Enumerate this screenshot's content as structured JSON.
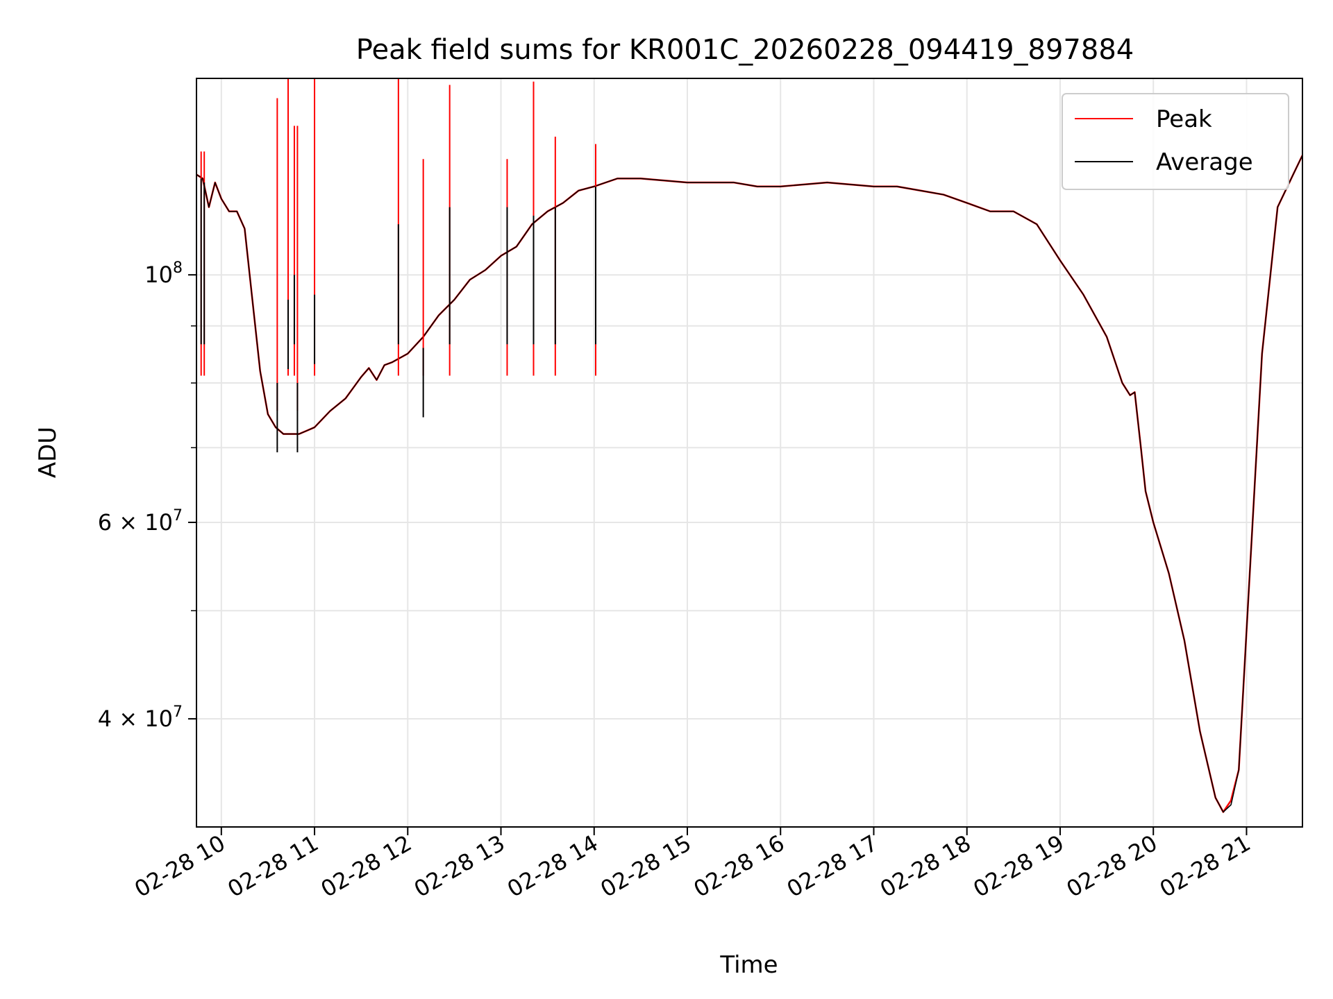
{
  "chart_data": {
    "type": "line",
    "title": "Peak field sums for KR001C_20260228_094419_897884",
    "xlabel": "Time",
    "ylabel": "ADU",
    "yscale": "log",
    "xlim": [
      "02-28 09:44",
      "02-28 21:36"
    ],
    "ylim": [
      32000000,
      150000000
    ],
    "grid": true,
    "legend_position": "top-right",
    "x_ticks": [
      "02-28 10",
      "02-28 11",
      "02-28 12",
      "02-28 13",
      "02-28 14",
      "02-28 15",
      "02-28 16",
      "02-28 17",
      "02-28 18",
      "02-28 19",
      "02-28 20",
      "02-28 21"
    ],
    "y_ticks": [
      {
        "value": 100000000,
        "base": "10",
        "exp": "8"
      },
      {
        "value": 60000000,
        "base": "6 × 10",
        "exp": "7"
      },
      {
        "value": 40000000,
        "base": "4 × 10",
        "exp": "7"
      }
    ],
    "x_times": [
      "09:44",
      "09:48",
      "09:52",
      "09:56",
      "10:00",
      "10:05",
      "10:10",
      "10:15",
      "10:20",
      "10:25",
      "10:30",
      "10:35",
      "10:40",
      "10:45",
      "10:50",
      "10:55",
      "11:00",
      "11:10",
      "11:20",
      "11:30",
      "11:35",
      "11:40",
      "11:45",
      "11:50",
      "12:00",
      "12:10",
      "12:20",
      "12:30",
      "12:40",
      "12:50",
      "13:00",
      "13:10",
      "13:20",
      "13:30",
      "13:40",
      "13:50",
      "14:00",
      "14:15",
      "14:30",
      "15:00",
      "15:30",
      "15:45",
      "16:00",
      "16:30",
      "17:00",
      "17:15",
      "17:30",
      "17:45",
      "18:00",
      "18:15",
      "18:30",
      "18:45",
      "19:00",
      "19:15",
      "19:30",
      "19:40",
      "19:45",
      "19:48",
      "19:52",
      "19:55",
      "20:00",
      "20:10",
      "20:20",
      "20:30",
      "20:40",
      "20:45",
      "20:50",
      "20:55",
      "21:00",
      "21:10",
      "21:20",
      "21:30",
      "21:36"
    ],
    "series": [
      {
        "name": "Peak",
        "color": "#ff0000",
        "values": [
          123000000,
          122000000,
          115000000,
          121000000,
          117000000,
          114000000,
          114000000,
          110000000,
          95000000,
          82000000,
          75000000,
          73000000,
          72000000,
          72000000,
          72000000,
          72500000,
          73000000,
          75500000,
          77500000,
          81000000,
          82500000,
          80500000,
          83000000,
          83500000,
          85000000,
          88000000,
          92000000,
          95000000,
          99000000,
          101000000,
          104000000,
          106000000,
          111000000,
          114000000,
          116000000,
          119000000,
          120000000,
          122000000,
          122000000,
          121000000,
          121000000,
          120000000,
          120000000,
          121000000,
          120000000,
          120000000,
          119000000,
          118000000,
          116000000,
          114000000,
          114000000,
          111000000,
          103000000,
          96000000,
          88000000,
          80000000,
          78000000,
          78500000,
          70000000,
          64000000,
          60000000,
          54000000,
          47000000,
          39000000,
          34000000,
          33000000,
          33800000,
          36000000,
          48000000,
          85000000,
          115000000,
          123000000,
          128000000
        ]
      },
      {
        "name": "Average",
        "color": "#000000",
        "values": [
          123000000,
          122000000,
          115000000,
          121000000,
          117000000,
          114000000,
          114000000,
          110000000,
          95000000,
          82000000,
          75000000,
          73000000,
          72000000,
          72000000,
          72000000,
          72500000,
          73000000,
          75500000,
          77500000,
          81000000,
          82500000,
          80500000,
          83000000,
          83500000,
          85000000,
          88000000,
          92000000,
          95000000,
          99000000,
          101000000,
          104000000,
          106000000,
          111000000,
          114000000,
          116000000,
          119000000,
          120000000,
          122000000,
          122000000,
          121000000,
          121000000,
          120000000,
          120000000,
          121000000,
          120000000,
          120000000,
          119000000,
          118000000,
          116000000,
          114000000,
          114000000,
          111000000,
          103000000,
          96000000,
          88000000,
          80000000,
          78000000,
          78500000,
          70000000,
          64000000,
          60000000,
          54000000,
          47000000,
          39000000,
          34000000,
          33000000,
          33500000,
          36000000,
          48000000,
          85000000,
          115000000,
          123000000,
          128000000
        ]
      }
    ],
    "peak_spikes": [
      {
        "time": "09:47",
        "peak": 129000000,
        "average": 122000000
      },
      {
        "time": "09:49",
        "peak": 129000000,
        "average": 121000000
      },
      {
        "time": "10:36",
        "peak": 144000000,
        "average": 80000000
      },
      {
        "time": "10:43",
        "peak": 150000000,
        "average": 95000000
      },
      {
        "time": "10:47",
        "peak": 136000000,
        "average": 100000000
      },
      {
        "time": "10:49",
        "peak": 136000000,
        "average": 80000000
      },
      {
        "time": "11:00",
        "peak": 150000000,
        "average": 96000000
      },
      {
        "time": "11:54",
        "peak": 150000000,
        "average": 111000000
      },
      {
        "time": "12:10",
        "peak": 127000000,
        "average": 86000000
      },
      {
        "time": "12:27",
        "peak": 148000000,
        "average": 115000000
      },
      {
        "time": "13:04",
        "peak": 127000000,
        "average": 115000000
      },
      {
        "time": "13:21",
        "peak": 149000000,
        "average": 113000000
      },
      {
        "time": "13:35",
        "peak": 133000000,
        "average": 115000000
      },
      {
        "time": "14:01",
        "peak": 131000000,
        "average": 120000000
      }
    ]
  }
}
